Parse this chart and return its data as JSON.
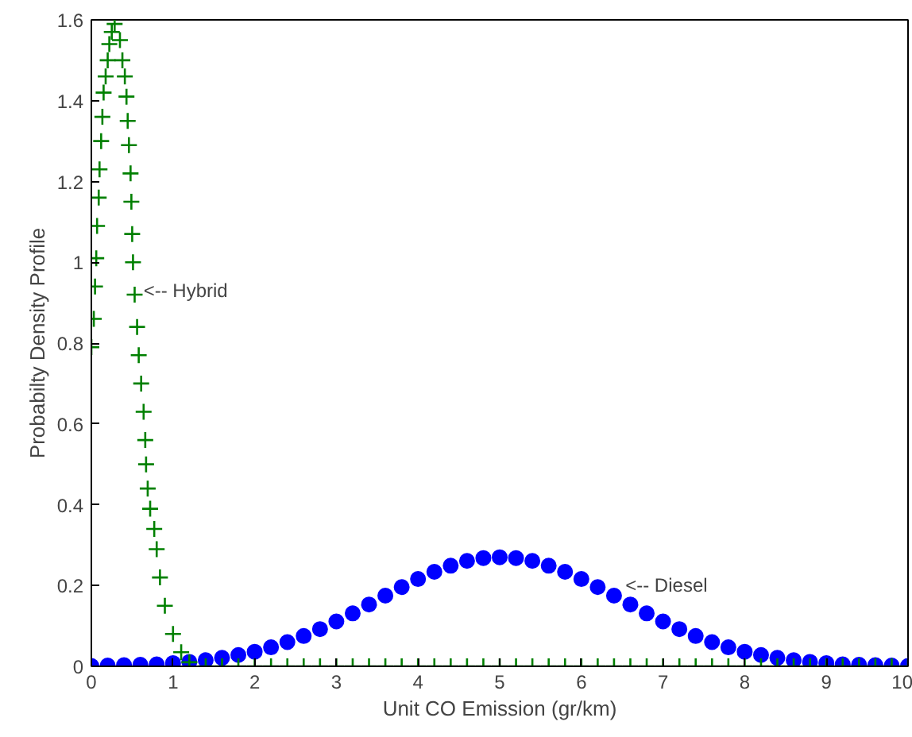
{
  "chart_data": {
    "type": "scatter",
    "xlabel": "Unit CO Emission (gr/km)",
    "ylabel": "Probabilty Density Profile",
    "xlim": [
      0,
      10
    ],
    "ylim": [
      0,
      1.6
    ],
    "xticks": [
      0,
      1,
      2,
      3,
      4,
      5,
      6,
      7,
      8,
      9,
      10
    ],
    "yticks": [
      0,
      0.2,
      0.4,
      0.6,
      0.8,
      1,
      1.2,
      1.4,
      1.6
    ],
    "grid": false,
    "annotations": [
      {
        "text": "<-- Hybrid",
        "x": 0.6,
        "y": 0.93
      },
      {
        "text": "<-- Diesel",
        "x": 6.5,
        "y": 0.2
      }
    ],
    "series": [
      {
        "color": "#0000ff",
        "marker": "circle",
        "x": [
          0,
          0.2,
          0.4,
          0.6,
          0.8,
          1,
          1.2,
          1.4,
          1.6,
          1.8,
          2,
          2.2,
          2.4,
          2.6,
          2.8,
          3,
          3.2,
          3.4,
          3.6,
          3.8,
          4,
          4.2,
          4.4,
          4.6,
          4.8,
          5,
          5.2,
          5.4,
          5.6,
          5.8,
          6,
          6.2,
          6.4,
          6.6,
          6.8,
          7,
          7.2,
          7.4,
          7.6,
          7.8,
          8,
          8.2,
          8.4,
          8.6,
          8.8,
          9,
          9.2,
          9.4,
          9.6,
          9.8,
          10
        ],
        "values": [
          0.001,
          0.002,
          0.003,
          0.004,
          0.005,
          0.008,
          0.011,
          0.015,
          0.021,
          0.028,
          0.036,
          0.047,
          0.06,
          0.075,
          0.092,
          0.111,
          0.131,
          0.153,
          0.175,
          0.196,
          0.216,
          0.234,
          0.249,
          0.261,
          0.268,
          0.27,
          0.268,
          0.261,
          0.249,
          0.234,
          0.216,
          0.196,
          0.175,
          0.153,
          0.131,
          0.111,
          0.092,
          0.075,
          0.06,
          0.047,
          0.036,
          0.028,
          0.021,
          0.015,
          0.011,
          0.008,
          0.005,
          0.004,
          0.003,
          0.002,
          0.001
        ]
      },
      {
        "color": "#008000",
        "marker": "cross",
        "x": [
          0,
          0.03,
          0.045,
          0.06,
          0.07,
          0.09,
          0.1,
          0.12,
          0.135,
          0.15,
          0.175,
          0.2,
          0.22,
          0.25,
          0.285,
          0.35,
          0.38,
          0.41,
          0.43,
          0.445,
          0.46,
          0.48,
          0.49,
          0.5,
          0.51,
          0.53,
          0.56,
          0.58,
          0.61,
          0.64,
          0.66,
          0.67,
          0.69,
          0.72,
          0.77,
          0.8,
          0.84,
          0.9,
          1,
          1.1,
          1.2,
          1.4,
          1.6,
          1.8,
          2,
          2.2,
          2.4,
          2.6,
          2.8,
          3,
          3.2,
          3.4,
          3.6,
          3.8,
          4,
          4.2,
          4.4,
          4.6,
          4.8,
          5,
          5.2,
          5.4,
          5.6,
          5.8,
          6,
          6.2,
          6.4,
          6.6,
          6.8,
          7,
          7.2,
          7.4,
          7.6,
          7.8,
          8,
          8.2,
          8.4,
          8.6,
          8.8,
          9,
          9.2,
          9.4,
          9.6,
          9.8,
          10
        ],
        "values": [
          0.79,
          0.86,
          0.94,
          1.01,
          1.09,
          1.16,
          1.23,
          1.3,
          1.36,
          1.42,
          1.46,
          1.5,
          1.54,
          1.57,
          1.59,
          1.55,
          1.5,
          1.46,
          1.41,
          1.35,
          1.29,
          1.22,
          1.15,
          1.07,
          1.0,
          0.92,
          0.84,
          0.77,
          0.7,
          0.63,
          0.56,
          0.5,
          0.44,
          0.39,
          0.34,
          0.29,
          0.22,
          0.15,
          0.08,
          0.035,
          0.01,
          0,
          0,
          0,
          0,
          0,
          0,
          0,
          0,
          0,
          0,
          0,
          0,
          0,
          0,
          0,
          0,
          0,
          0,
          0,
          0,
          0,
          0,
          0,
          0,
          0,
          0,
          0,
          0,
          0,
          0,
          0,
          0,
          0,
          0,
          0,
          0,
          0,
          0,
          0,
          0,
          0,
          0,
          0,
          0
        ]
      }
    ]
  }
}
